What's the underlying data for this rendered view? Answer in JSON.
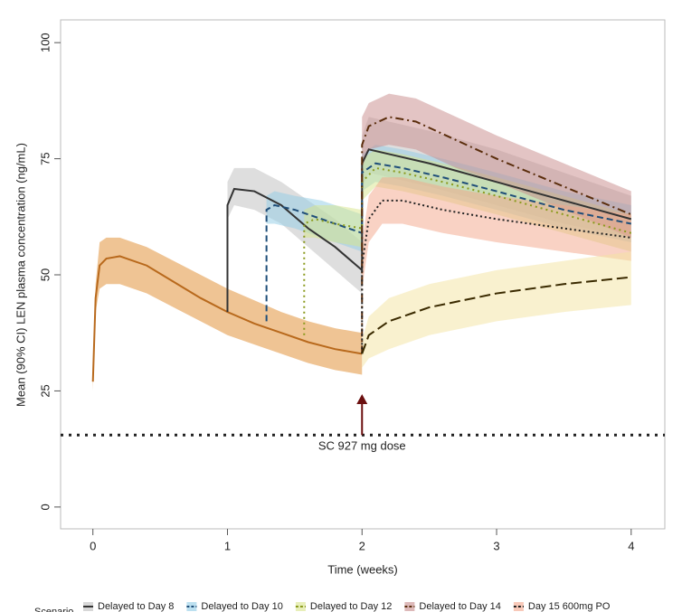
{
  "chart_data": {
    "type": "line",
    "x_label": "Time (weeks)",
    "y_label": "Mean (90% CI) LEN plasma concentration (ng/mL)",
    "xlim": [
      -0.24,
      4.25
    ],
    "ylim": [
      -4.7,
      104.9
    ],
    "xticks": [
      0,
      1,
      2,
      3,
      4
    ],
    "yticks": [
      0,
      25,
      50,
      75,
      100
    ],
    "reference_line": 15.5,
    "annotation": {
      "text": "SC 927 mg dose",
      "x": 2
    },
    "legend_title": "Scenario",
    "series": [
      {
        "color": "#b8691c",
        "band_color": "#e0892a",
        "dash": "none",
        "x": [
          0,
          0.02,
          0.05,
          0.1,
          0.2,
          0.4,
          0.6,
          0.8,
          1.0,
          1.2,
          1.4,
          1.6,
          1.8,
          2.0
        ],
        "values": [
          27,
          45,
          52,
          53.5,
          54,
          52,
          48.5,
          45,
          42,
          39.5,
          37.5,
          35.5,
          34,
          33
        ],
        "ci_lower": [
          25,
          42,
          47,
          48,
          48,
          46,
          43,
          40,
          37,
          35,
          33,
          31,
          29.5,
          28.5
        ],
        "ci_upper": [
          29,
          48,
          57,
          58,
          58,
          56,
          53,
          50,
          47,
          44.5,
          42,
          40,
          38.5,
          37.5
        ]
      },
      {
        "name": "Delayed to Day 8",
        "color": "#333333",
        "band_color": "#bdbdbd",
        "dash": "none",
        "x": [
          1.0,
          1.0,
          1.05,
          1.2,
          1.4,
          1.6,
          1.8,
          2.0,
          2.0,
          2.05,
          2.2,
          2.5,
          3,
          3.5,
          4
        ],
        "values": [
          42,
          65,
          68.5,
          68,
          65,
          60,
          56,
          51,
          74,
          77,
          76,
          74,
          70,
          66,
          62
        ],
        "ci_lower": [
          40,
          62,
          65,
          64,
          61,
          56,
          51,
          46,
          69,
          72,
          71,
          69,
          65,
          61,
          58
        ],
        "ci_upper": [
          44,
          70,
          73,
          73,
          70,
          66,
          62,
          57,
          80,
          84,
          83,
          81,
          77,
          72,
          67
        ]
      },
      {
        "name": "Delayed to Day 10",
        "color": "#1f4e79",
        "band_color": "#8fcbe6",
        "dash": "7 4",
        "x": [
          1.29,
          1.29,
          1.35,
          1.5,
          1.7,
          1.9,
          2.0,
          2.0,
          2.1,
          2.3,
          2.6,
          3,
          3.5,
          4
        ],
        "values": [
          40,
          64,
          65,
          64,
          62,
          60,
          59,
          72,
          74,
          73,
          71,
          68,
          64,
          61
        ],
        "ci_lower": [
          38,
          61,
          61,
          60,
          58,
          56,
          55,
          68,
          70,
          69,
          67,
          64,
          60,
          57
        ],
        "ci_upper": [
          42,
          67,
          68,
          67,
          66,
          64,
          63,
          76,
          78,
          77,
          75,
          72,
          68,
          65
        ]
      },
      {
        "name": "Delayed to Day 12",
        "color": "#8a9a1c",
        "band_color": "#d8e58a",
        "dash": "2 4",
        "x": [
          1.57,
          1.57,
          1.65,
          1.8,
          2.0,
          2.0,
          2.1,
          2.3,
          2.6,
          3,
          3.5,
          4
        ],
        "values": [
          37,
          61,
          62,
          61,
          60,
          70,
          73,
          72,
          70,
          67,
          63,
          59
        ],
        "ci_lower": [
          35,
          58,
          58,
          57,
          56,
          66,
          69,
          68,
          66,
          63,
          59,
          55
        ],
        "ci_upper": [
          39,
          64,
          65,
          65,
          64,
          75,
          77,
          76,
          74,
          71,
          67,
          63
        ]
      },
      {
        "name": "Delayed to Day 14",
        "color": "#5a2d0c",
        "band_color": "#c78a8a",
        "dash": "9 4 2 4",
        "x": [
          2.0,
          2.0,
          2.05,
          2.2,
          2.4,
          2.7,
          3,
          3.5,
          4
        ],
        "values": [
          33,
          78,
          82,
          84,
          83,
          79,
          75,
          69,
          63
        ],
        "ci_lower": [
          30,
          73,
          77,
          78,
          77,
          73,
          70,
          64,
          58
        ],
        "ci_upper": [
          36,
          84,
          87,
          89,
          88,
          84,
          80,
          74,
          68
        ]
      },
      {
        "name": "Day 15 600mg PO",
        "color": "#222222",
        "band_color": "#f4a58a",
        "dash": "2 3",
        "x": [
          2.0,
          2.0,
          2.05,
          2.15,
          2.3,
          2.6,
          3,
          3.5,
          4
        ],
        "values": [
          33,
          52,
          62,
          66,
          66,
          64,
          62,
          60,
          58
        ],
        "ci_lower": [
          30,
          47,
          57,
          61,
          61,
          59,
          57,
          55,
          53
        ],
        "ci_upper": [
          36,
          57,
          67,
          71,
          71,
          69,
          67,
          65,
          63
        ]
      },
      {
        "color": "#3a2a00",
        "band_color": "#f3e3a0",
        "dash": "12 5",
        "x": [
          2.0,
          2.05,
          2.2,
          2.5,
          3,
          3.5,
          4
        ],
        "values": [
          33,
          37,
          40,
          43,
          46,
          48,
          49.5
        ],
        "ci_lower": [
          30,
          32,
          34,
          37,
          40,
          42,
          43.5
        ],
        "ci_upper": [
          36,
          41,
          45,
          48,
          51,
          53,
          55
        ]
      }
    ]
  }
}
